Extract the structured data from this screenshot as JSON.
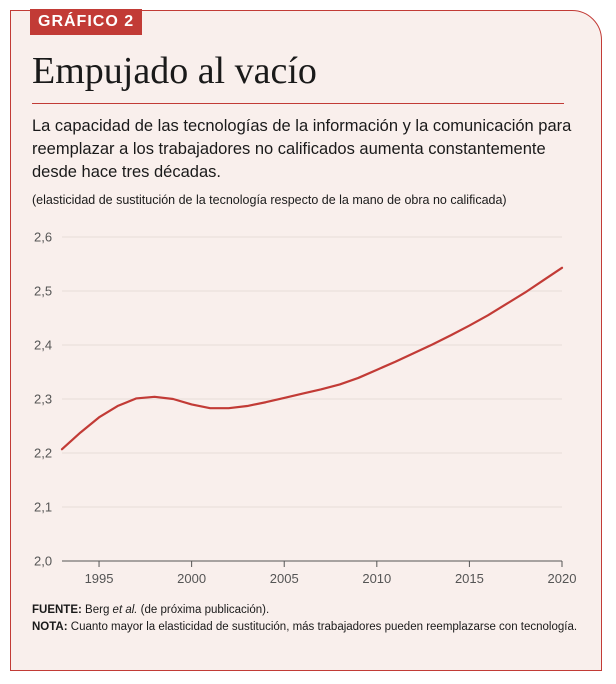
{
  "tag": "GRÁFICO 2",
  "title": "Empujado al vacío",
  "subtitle": "La capacidad de las tecnologías de la información y la comunicación para reemplazar a los trabajadores no calificados aumenta constantemente desde hace tres décadas.",
  "note_ylabel": "(elasticidad de sustitución de la tecnología respecto de la mano de obra no calificada)",
  "footer": {
    "source_label": "FUENTE:",
    "source_text_a": "Berg ",
    "source_text_em": "et al.",
    "source_text_b": " (de próxima publicación).",
    "nota_label": "NOTA:",
    "nota_text": "Cuanto mayor la elasticidad de sustitución, más trabajadores pueden reemplazarse con tecnología."
  },
  "colors": {
    "accent": "#c23b36",
    "background": "#f9efec",
    "grid": "#e6dcd8"
  },
  "chart_data": {
    "type": "line",
    "title": "Empujado al vacío",
    "xlabel": "",
    "ylabel": "(elasticidad de sustitución de la tecnología respecto de la mano de obra no calificada)",
    "xlim": [
      1993,
      2020
    ],
    "ylim": [
      2.0,
      2.6
    ],
    "x_ticks": [
      1995,
      2000,
      2005,
      2010,
      2015,
      2020
    ],
    "y_ticks": [
      2.0,
      2.1,
      2.2,
      2.3,
      2.4,
      2.5,
      2.6
    ],
    "y_tick_labels": [
      "2,0",
      "2,1",
      "2,2",
      "2,3",
      "2,4",
      "2,5",
      "2,6"
    ],
    "grid": true,
    "series": [
      {
        "name": "",
        "color": "#c23b36",
        "x": [
          1993,
          1994,
          1995,
          1996,
          1997,
          1998,
          1999,
          2000,
          2001,
          2002,
          2003,
          2004,
          2005,
          2006,
          2007,
          2008,
          2009,
          2010,
          2011,
          2012,
          2013,
          2014,
          2015,
          2016,
          2017,
          2018,
          2019,
          2020
        ],
        "y": [
          2.207,
          2.238,
          2.266,
          2.287,
          2.301,
          2.304,
          2.3,
          2.29,
          2.283,
          2.283,
          2.287,
          2.294,
          2.302,
          2.31,
          2.318,
          2.327,
          2.339,
          2.354,
          2.369,
          2.385,
          2.401,
          2.418,
          2.436,
          2.455,
          2.476,
          2.497,
          2.52,
          2.543
        ]
      }
    ]
  }
}
